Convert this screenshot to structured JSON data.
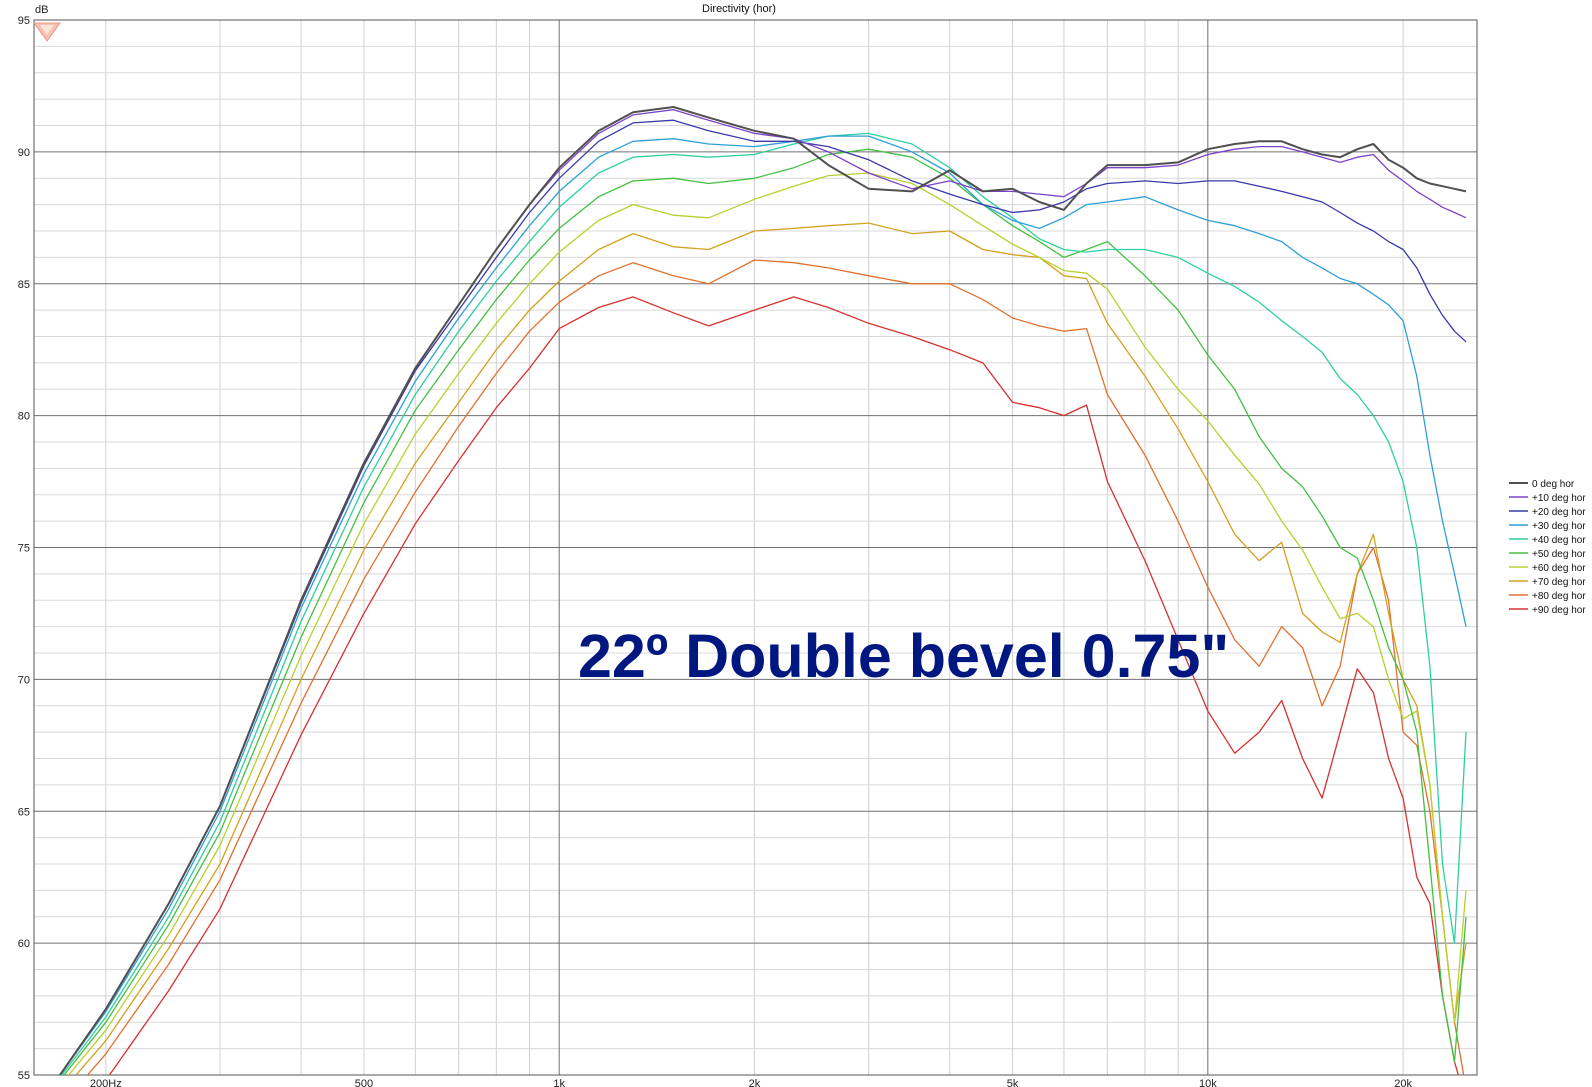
{
  "chart_data": {
    "type": "line",
    "title": "Directivity (hor)",
    "ylabel": "dB",
    "xlabel": "",
    "x_scale": "log",
    "xlim": [
      155,
      26000
    ],
    "ylim": [
      55,
      95
    ],
    "x_tick_labels": [
      {
        "value": 200,
        "label": "200Hz"
      },
      {
        "value": 500,
        "label": "500"
      },
      {
        "value": 1000,
        "label": "1k"
      },
      {
        "value": 2000,
        "label": "2k"
      },
      {
        "value": 5000,
        "label": "5k"
      },
      {
        "value": 10000,
        "label": "10k"
      },
      {
        "value": 20000,
        "label": "20k"
      }
    ],
    "y_tick_labels": [
      {
        "value": 95,
        "label": "95"
      },
      {
        "value": 90,
        "label": "90"
      },
      {
        "value": 85,
        "label": "85"
      },
      {
        "value": 80,
        "label": "80"
      },
      {
        "value": 75,
        "label": "75"
      },
      {
        "value": 70,
        "label": "70"
      },
      {
        "value": 65,
        "label": "65"
      },
      {
        "value": 60,
        "label": "60"
      },
      {
        "value": 55,
        "label": "55"
      }
    ],
    "grid": true,
    "legend_position": "right",
    "annotation": "22º Double bevel 0.75\"",
    "x": [
      170,
      200,
      250,
      300,
      400,
      500,
      600,
      700,
      800,
      900,
      1000,
      1150,
      1300,
      1500,
      1700,
      2000,
      2300,
      2600,
      3000,
      3500,
      4000,
      4500,
      5000,
      5500,
      6000,
      6500,
      7000,
      8000,
      9000,
      10000,
      11000,
      12000,
      13000,
      14000,
      15000,
      16000,
      17000,
      18000,
      19000,
      20000,
      21000,
      22000,
      23000,
      24000,
      25000
    ],
    "series": [
      {
        "name": "0 deg hor",
        "color": "#505050",
        "values": [
          55.0,
          57.5,
          61.5,
          65.2,
          73.0,
          78.2,
          81.8,
          84.2,
          86.3,
          88.0,
          89.4,
          90.8,
          91.5,
          91.7,
          91.3,
          90.8,
          90.5,
          89.5,
          88.6,
          88.5,
          89.3,
          88.5,
          88.6,
          88.1,
          87.8,
          88.8,
          89.5,
          89.5,
          89.6,
          90.1,
          90.3,
          90.4,
          90.4,
          90.1,
          89.9,
          89.8,
          90.1,
          90.3,
          89.7,
          89.4,
          89.0,
          88.8,
          88.7,
          88.6,
          88.5
        ]
      },
      {
        "name": "+10 deg hor",
        "color": "#7a44c8",
        "values": [
          55.0,
          57.5,
          61.5,
          65.2,
          73.0,
          78.2,
          81.8,
          84.2,
          86.3,
          88.0,
          89.3,
          90.7,
          91.4,
          91.6,
          91.2,
          90.7,
          90.5,
          90.0,
          89.2,
          88.6,
          88.9,
          88.5,
          88.5,
          88.4,
          88.3,
          88.8,
          89.4,
          89.4,
          89.5,
          89.9,
          90.1,
          90.2,
          90.2,
          90.0,
          89.8,
          89.6,
          89.8,
          89.9,
          89.3,
          88.9,
          88.5,
          88.2,
          87.9,
          87.7,
          87.5
        ]
      },
      {
        "name": "+20 deg hor",
        "color": "#3a38a8",
        "values": [
          55.0,
          57.5,
          61.5,
          65.2,
          72.9,
          78.1,
          81.7,
          84.0,
          86.0,
          87.7,
          89.0,
          90.4,
          91.1,
          91.2,
          90.8,
          90.4,
          90.4,
          90.2,
          89.7,
          88.9,
          88.4,
          88.0,
          87.7,
          87.8,
          88.1,
          88.6,
          88.8,
          88.9,
          88.8,
          88.9,
          88.9,
          88.7,
          88.5,
          88.3,
          88.1,
          87.7,
          87.3,
          87.0,
          86.6,
          86.3,
          85.6,
          84.6,
          83.8,
          83.2,
          82.8
        ]
      },
      {
        "name": "+30 deg hor",
        "color": "#2e9fd6",
        "values": [
          55.0,
          57.4,
          61.3,
          65.0,
          72.7,
          77.8,
          81.3,
          83.7,
          85.6,
          87.2,
          88.5,
          89.8,
          90.4,
          90.5,
          90.3,
          90.2,
          90.4,
          90.6,
          90.6,
          90.0,
          89.2,
          88.0,
          87.4,
          87.1,
          87.5,
          88.0,
          88.1,
          88.3,
          87.8,
          87.4,
          87.2,
          86.9,
          86.6,
          86.0,
          85.6,
          85.2,
          85.0,
          84.6,
          84.2,
          83.6,
          81.5,
          78.5,
          76.0,
          74.0,
          72.0
        ]
      },
      {
        "name": "+40 deg hor",
        "color": "#2ecfa0",
        "values": [
          54.9,
          57.2,
          61.0,
          64.6,
          72.2,
          77.3,
          80.8,
          83.2,
          85.1,
          86.6,
          87.9,
          89.2,
          89.8,
          89.9,
          89.8,
          89.9,
          90.3,
          90.6,
          90.7,
          90.3,
          89.4,
          88.3,
          87.5,
          86.7,
          86.3,
          86.2,
          86.3,
          86.3,
          86.0,
          85.4,
          84.9,
          84.3,
          83.6,
          83.0,
          82.4,
          81.4,
          80.8,
          80.0,
          79.0,
          77.5,
          75.0,
          70.5,
          63.0,
          60.0,
          68.0
        ]
      },
      {
        "name": "+50 deg hor",
        "color": "#44c040",
        "values": [
          54.8,
          57.0,
          60.7,
          64.2,
          71.6,
          76.7,
          80.2,
          82.5,
          84.4,
          85.9,
          87.1,
          88.3,
          88.9,
          89.0,
          88.8,
          89.0,
          89.4,
          89.9,
          90.1,
          89.8,
          89.0,
          88.0,
          87.2,
          86.6,
          86.0,
          86.3,
          86.6,
          85.3,
          84.0,
          82.3,
          81.0,
          79.2,
          78.0,
          77.3,
          76.2,
          75.0,
          74.6,
          73.0,
          71.2,
          70.0,
          68.0,
          63.0,
          58.0,
          55.5,
          61.0
        ]
      },
      {
        "name": "+60 deg hor",
        "color": "#b8d030",
        "values": [
          54.6,
          56.7,
          60.3,
          63.7,
          70.9,
          75.9,
          79.3,
          81.6,
          83.5,
          85.0,
          86.2,
          87.4,
          88.0,
          87.6,
          87.5,
          88.2,
          88.7,
          89.1,
          89.2,
          88.8,
          88.0,
          87.2,
          86.5,
          86.0,
          85.5,
          85.4,
          84.8,
          82.6,
          81.0,
          79.8,
          78.5,
          77.4,
          76.0,
          74.9,
          73.5,
          72.3,
          72.5,
          72.0,
          70.0,
          68.5,
          68.8,
          66.0,
          61.0,
          57.0,
          62.0
        ]
      },
      {
        "name": "+70 deg hor",
        "color": "#d4a020",
        "values": [
          54.3,
          56.3,
          59.8,
          63.0,
          70.0,
          74.9,
          78.2,
          80.5,
          82.5,
          84.0,
          85.1,
          86.3,
          86.9,
          86.4,
          86.3,
          87.0,
          87.1,
          87.2,
          87.3,
          86.9,
          87.0,
          86.3,
          86.1,
          86.0,
          85.3,
          85.2,
          83.5,
          81.5,
          79.5,
          77.5,
          75.5,
          74.5,
          75.2,
          72.5,
          71.8,
          71.4,
          74.0,
          75.5,
          72.5,
          70.0,
          69.0,
          66.0,
          61.0,
          57.0,
          60.0
        ]
      },
      {
        "name": "+80 deg hor",
        "color": "#e07030",
        "values": [
          53.8,
          55.8,
          59.2,
          62.4,
          69.1,
          73.8,
          77.1,
          79.6,
          81.6,
          83.2,
          84.3,
          85.3,
          85.8,
          85.3,
          85.0,
          85.9,
          85.8,
          85.6,
          85.3,
          85.0,
          85.0,
          84.4,
          83.7,
          83.4,
          83.2,
          83.3,
          80.8,
          78.5,
          76.0,
          73.5,
          71.5,
          70.5,
          72.0,
          71.2,
          69.0,
          70.5,
          74.0,
          75.0,
          73.0,
          68.0,
          67.5,
          65.0,
          61.0,
          57.0,
          54.5
        ]
      },
      {
        "name": "+90 deg hor",
        "color": "#d83030",
        "values": [
          52.8,
          54.8,
          58.2,
          61.3,
          67.9,
          72.5,
          75.9,
          78.3,
          80.3,
          81.8,
          83.3,
          84.1,
          84.5,
          83.9,
          83.4,
          84.0,
          84.5,
          84.1,
          83.5,
          83.0,
          82.5,
          82.0,
          80.5,
          80.3,
          80.0,
          80.4,
          77.5,
          74.5,
          71.5,
          68.8,
          67.2,
          68.0,
          69.2,
          67.0,
          65.5,
          68.0,
          70.4,
          69.5,
          67.0,
          65.5,
          62.5,
          61.5,
          58.0,
          55.5,
          54.0
        ]
      }
    ]
  }
}
